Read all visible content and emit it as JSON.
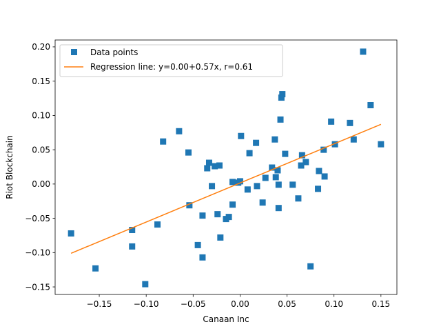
{
  "chart_data": {
    "type": "scatter",
    "xlabel": "Canaan Inc",
    "ylabel": "Riot Blockchain",
    "xlim": [
      -0.197,
      0.167
    ],
    "ylim": [
      -0.161,
      0.21
    ],
    "xticks": [
      -0.15,
      -0.1,
      -0.05,
      0.0,
      0.05,
      0.1,
      0.15
    ],
    "xtick_labels": [
      "−0.15",
      "−0.10",
      "−0.05",
      "0.00",
      "0.05",
      "0.10",
      "0.15"
    ],
    "yticks": [
      -0.15,
      -0.1,
      -0.05,
      0.0,
      0.05,
      0.1,
      0.15,
      0.2
    ],
    "ytick_labels": [
      "−0.15",
      "−0.10",
      "−0.05",
      "0.00",
      "0.05",
      "0.10",
      "0.15",
      "0.20"
    ],
    "grid": false,
    "legend_position": "top-left",
    "series": [
      {
        "name": "Data points",
        "type": "scatter",
        "marker": "square",
        "color": "#1f77b4",
        "points": [
          [
            -0.18,
            -0.072
          ],
          [
            -0.154,
            -0.123
          ],
          [
            -0.115,
            -0.067
          ],
          [
            -0.115,
            -0.091
          ],
          [
            -0.101,
            -0.146
          ],
          [
            -0.088,
            -0.059
          ],
          [
            -0.082,
            0.062
          ],
          [
            -0.065,
            0.077
          ],
          [
            -0.055,
            0.046
          ],
          [
            -0.054,
            -0.031
          ],
          [
            -0.045,
            -0.089
          ],
          [
            -0.04,
            -0.046
          ],
          [
            -0.04,
            -0.107
          ],
          [
            -0.035,
            0.023
          ],
          [
            -0.033,
            0.031
          ],
          [
            -0.03,
            -0.003
          ],
          [
            -0.027,
            0.026
          ],
          [
            -0.024,
            -0.044
          ],
          [
            -0.022,
            0.027
          ],
          [
            -0.021,
            -0.078
          ],
          [
            -0.015,
            -0.051
          ],
          [
            -0.012,
            -0.048
          ],
          [
            -0.008,
            -0.03
          ],
          [
            -0.008,
            0.003
          ],
          [
            -0.002,
            0.002
          ],
          [
            0.0,
            0.004
          ],
          [
            0.001,
            0.07
          ],
          [
            0.008,
            -0.008
          ],
          [
            0.01,
            0.045
          ],
          [
            0.017,
            0.06
          ],
          [
            0.018,
            -0.003
          ],
          [
            0.024,
            -0.027
          ],
          [
            0.027,
            0.009
          ],
          [
            0.034,
            0.024
          ],
          [
            0.037,
            0.065
          ],
          [
            0.038,
            0.01
          ],
          [
            0.04,
            0.02
          ],
          [
            0.041,
            -0.035
          ],
          [
            0.041,
            -0.001
          ],
          [
            0.043,
            0.094
          ],
          [
            0.044,
            0.126
          ],
          [
            0.045,
            0.131
          ],
          [
            0.048,
            0.044
          ],
          [
            0.056,
            -0.001
          ],
          [
            0.062,
            -0.021
          ],
          [
            0.065,
            0.027
          ],
          [
            0.066,
            0.042
          ],
          [
            0.07,
            0.032
          ],
          [
            0.075,
            -0.12
          ],
          [
            0.083,
            -0.007
          ],
          [
            0.084,
            0.019
          ],
          [
            0.089,
            0.05
          ],
          [
            0.09,
            0.011
          ],
          [
            0.097,
            0.091
          ],
          [
            0.101,
            0.058
          ],
          [
            0.117,
            0.089
          ],
          [
            0.121,
            0.065
          ],
          [
            0.131,
            0.193
          ],
          [
            0.139,
            0.115
          ],
          [
            0.15,
            0.058
          ]
        ]
      },
      {
        "name": "Regression line: y=0.00+0.57x, r=0.61",
        "type": "line",
        "color": "#ff7f0e",
        "points": [
          [
            -0.18,
            -0.101
          ],
          [
            0.15,
            0.087
          ]
        ]
      }
    ]
  }
}
